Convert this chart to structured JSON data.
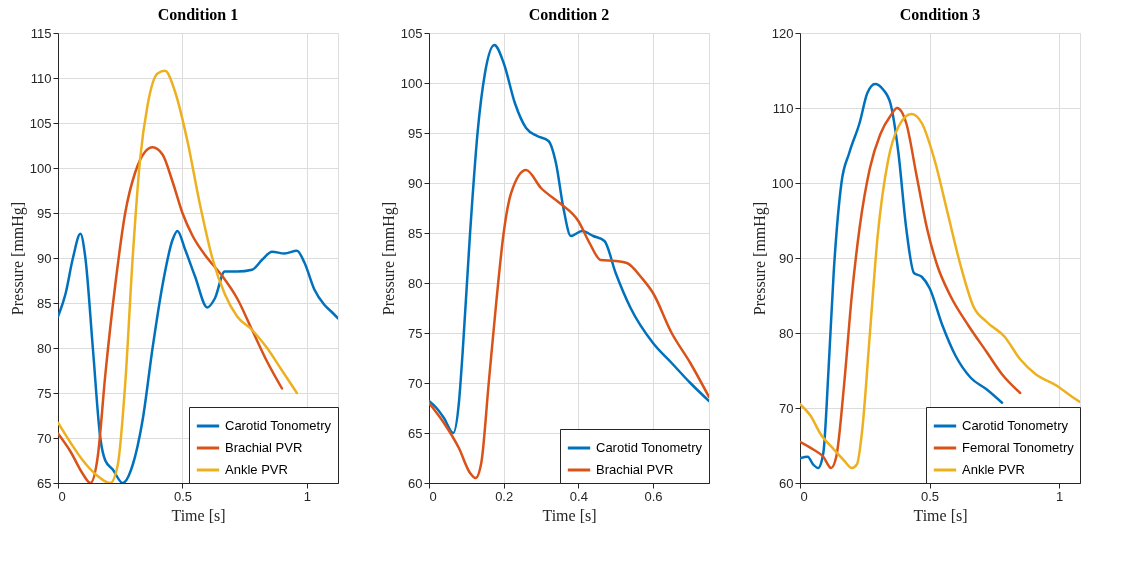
{
  "chart_data": [
    {
      "type": "line",
      "title": "Condition 1",
      "xlabel": "Time [s]",
      "ylabel": "Pressure [mmHg]",
      "xlim": [
        0,
        1.125
      ],
      "xticks": [
        0,
        0.5,
        1
      ],
      "ylim": [
        65,
        115
      ],
      "yticks": [
        65,
        70,
        75,
        80,
        85,
        90,
        95,
        100,
        105,
        110,
        115
      ],
      "grid": true,
      "legend": "bottom right",
      "line_style": "solid",
      "marker": "none",
      "series": [
        {
          "name": "Carotid Tonometry",
          "color": "#0072bd",
          "x": [
            0,
            0.03,
            0.06,
            0.09,
            0.11,
            0.14,
            0.17,
            0.19,
            0.22,
            0.26,
            0.3,
            0.34,
            0.38,
            0.42,
            0.46,
            0.48,
            0.51,
            0.55,
            0.6,
            0.63,
            0.67,
            0.72,
            0.78,
            0.82,
            0.86,
            0.91,
            0.96,
            0.99,
            1.03,
            1.07,
            1.1,
            1.125
          ],
          "values": [
            83.5,
            86,
            90,
            92.7,
            90,
            80,
            70,
            67.5,
            66.5,
            65,
            67,
            72,
            80,
            87,
            92,
            93,
            91,
            88,
            84.5,
            85.5,
            88.5,
            88.5,
            88.7,
            89.8,
            90.7,
            90.5,
            90.8,
            89.5,
            86.5,
            84.8,
            84,
            83.3
          ]
        },
        {
          "name": "Brachial PVR",
          "color": "#d95319",
          "x": [
            0,
            0.05,
            0.1,
            0.13,
            0.16,
            0.19,
            0.23,
            0.27,
            0.31,
            0.35,
            0.38,
            0.42,
            0.46,
            0.5,
            0.54,
            0.6,
            0.66,
            0.72,
            0.78,
            0.84,
            0.9
          ],
          "values": [
            70.5,
            68.5,
            66,
            65,
            68,
            77,
            87,
            95,
            99.5,
            101.8,
            102.3,
            101.5,
            98.5,
            95,
            92.5,
            90,
            88,
            85.5,
            82,
            78.5,
            75.5
          ]
        },
        {
          "name": "Ankle PVR",
          "color": "#edb120",
          "x": [
            0,
            0.05,
            0.1,
            0.15,
            0.21,
            0.24,
            0.27,
            0.3,
            0.33,
            0.36,
            0.4,
            0.43,
            0.47,
            0.52,
            0.57,
            0.62,
            0.67,
            0.72,
            0.78,
            0.84,
            0.9,
            0.96
          ],
          "values": [
            71.7,
            69.5,
            67.5,
            66,
            65,
            67,
            76,
            90,
            101,
            107,
            110.5,
            110.8,
            108.5,
            103,
            96,
            90,
            86,
            83.5,
            82,
            80,
            77.5,
            75
          ]
        }
      ]
    },
    {
      "type": "line",
      "title": "Condition 2",
      "xlabel": "Time [s]",
      "ylabel": "Pressure [mmHg]",
      "xlim": [
        0,
        0.75
      ],
      "xticks": [
        0,
        0.2,
        0.4,
        0.6
      ],
      "ylim": [
        60,
        105
      ],
      "yticks": [
        60,
        65,
        70,
        75,
        80,
        85,
        90,
        95,
        100,
        105
      ],
      "grid": true,
      "legend": "bottom right",
      "line_style": "solid",
      "marker": "none",
      "series": [
        {
          "name": "Carotid Tonometry",
          "color": "#0072bd",
          "x": [
            0,
            0.02,
            0.04,
            0.065,
            0.08,
            0.09,
            0.11,
            0.13,
            0.15,
            0.175,
            0.2,
            0.23,
            0.26,
            0.29,
            0.32,
            0.34,
            0.36,
            0.38,
            0.41,
            0.44,
            0.47,
            0.5,
            0.54,
            0.6,
            0.65,
            0.7,
            0.75
          ],
          "values": [
            68.2,
            67.5,
            66.5,
            65,
            68,
            73,
            85,
            95,
            101,
            103.8,
            102,
            98,
            95.5,
            94.7,
            94.2,
            92,
            87.5,
            84.7,
            85.2,
            84.7,
            84.2,
            81,
            77.5,
            74,
            72,
            70,
            68.2
          ]
        },
        {
          "name": "Brachial PVR",
          "color": "#d95319",
          "x": [
            0,
            0.04,
            0.08,
            0.11,
            0.125,
            0.14,
            0.16,
            0.18,
            0.2,
            0.22,
            0.26,
            0.3,
            0.35,
            0.4,
            0.43,
            0.46,
            0.5,
            0.53,
            0.57,
            0.6,
            0.65,
            0.7,
            0.75
          ],
          "values": [
            68,
            66,
            63.5,
            61,
            60.5,
            62,
            70,
            78,
            85,
            89,
            91.3,
            89.5,
            88,
            86.2,
            84,
            82.3,
            82.2,
            82,
            80.5,
            79,
            75,
            72,
            68.6
          ]
        }
      ]
    },
    {
      "type": "line",
      "title": "Condition 3",
      "xlabel": "Time [s]",
      "ylabel": "Pressure [mmHg]",
      "xlim": [
        0,
        1.081
      ],
      "xticks": [
        0,
        0.5,
        1
      ],
      "ylim": [
        60,
        120
      ],
      "yticks": [
        60,
        70,
        80,
        90,
        100,
        110,
        120
      ],
      "grid": true,
      "legend": "bottom right",
      "line_style": "solid",
      "marker": "none",
      "series": [
        {
          "name": "Carotid Tonometry",
          "color": "#0072bd",
          "x": [
            0,
            0.03,
            0.05,
            0.07,
            0.09,
            0.11,
            0.13,
            0.16,
            0.19,
            0.23,
            0.26,
            0.29,
            0.32,
            0.35,
            0.38,
            0.41,
            0.44,
            0.47,
            0.5,
            0.55,
            0.6,
            0.66,
            0.72,
            0.78
          ],
          "values": [
            63.3,
            63.5,
            62.5,
            62,
            64,
            75,
            88,
            100,
            104,
            108,
            112,
            113.2,
            112.5,
            110.5,
            104,
            94,
            88,
            87.5,
            86,
            81,
            77,
            74,
            72.5,
            70.7
          ]
        },
        {
          "name": "Femoral Tonometry",
          "color": "#d95319",
          "x": [
            0,
            0.05,
            0.09,
            0.12,
            0.14,
            0.17,
            0.2,
            0.23,
            0.27,
            0.31,
            0.35,
            0.375,
            0.41,
            0.45,
            0.49,
            0.53,
            0.58,
            0.65,
            0.72,
            0.78,
            0.85
          ],
          "values": [
            65.5,
            64.5,
            63.5,
            62,
            63.5,
            73,
            85,
            94,
            102,
            106.5,
            109,
            110,
            108,
            101,
            94,
            89,
            85,
            81,
            77.5,
            74.5,
            72
          ]
        },
        {
          "name": "Ankle PVR",
          "color": "#edb120",
          "x": [
            0,
            0.04,
            0.08,
            0.13,
            0.17,
            0.2,
            0.22,
            0.24,
            0.27,
            0.3,
            0.34,
            0.38,
            0.43,
            0.47,
            0.52,
            0.57,
            0.62,
            0.67,
            0.72,
            0.79,
            0.85,
            0.91,
            0.99,
            1.05,
            1.081
          ],
          "values": [
            70.5,
            69,
            66.5,
            64.5,
            63,
            62,
            62.5,
            67,
            80,
            93,
            103,
            107.5,
            109.2,
            108,
            103,
            96,
            89,
            83.5,
            81.5,
            79.5,
            76.5,
            74.5,
            73,
            71.5,
            70.8
          ]
        }
      ]
    }
  ]
}
